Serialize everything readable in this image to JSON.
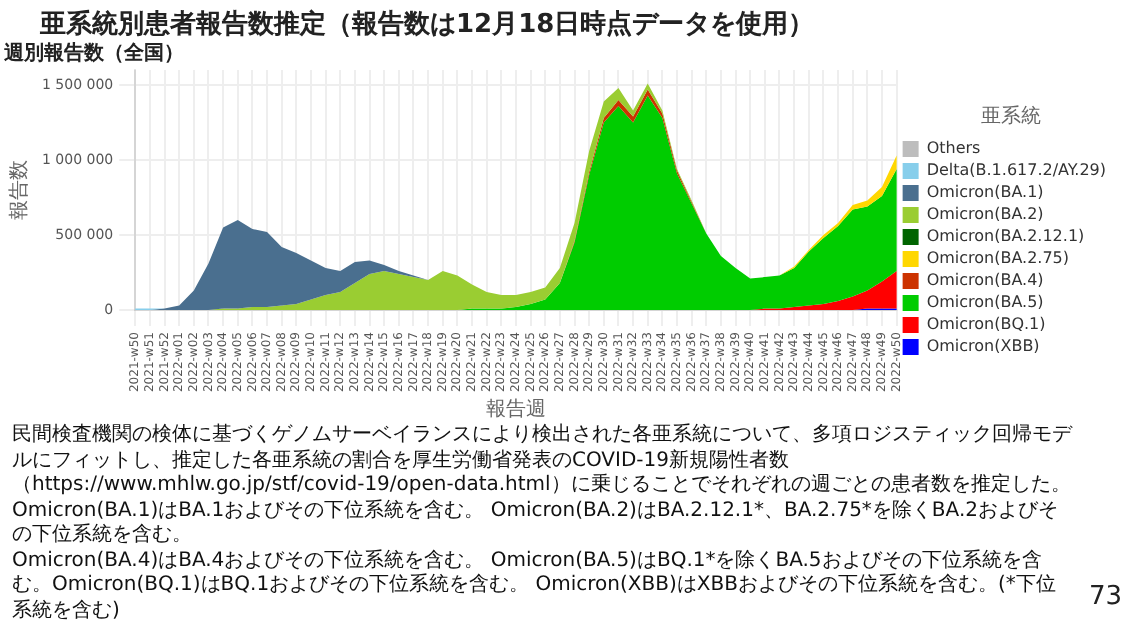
{
  "chart_data": {
    "type": "area",
    "stacked": true,
    "title": "亜系統別患者報告数推定（報告数は12月18日時点データを使用）",
    "subtitle": "週別報告数（全国）",
    "xlabel": "報告週",
    "ylabel": "報告数",
    "legend_title": "亜系統",
    "legend": "right",
    "grid": true,
    "categories": [
      "2021-w50",
      "2021-w51",
      "2021-w52",
      "2022-w01",
      "2022-w02",
      "2022-w03",
      "2022-w04",
      "2022-w05",
      "2022-w06",
      "2022-w07",
      "2022-w08",
      "2022-w09",
      "2022-w10",
      "2022-w11",
      "2022-w12",
      "2022-w13",
      "2022-w14",
      "2022-w15",
      "2022-w16",
      "2022-w17",
      "2022-w18",
      "2022-w19",
      "2022-w20",
      "2022-w21",
      "2022-w22",
      "2022-w23",
      "2022-w24",
      "2022-w25",
      "2022-w26",
      "2022-w27",
      "2022-w28",
      "2022-w29",
      "2022-w30",
      "2022-w31",
      "2022-w32",
      "2022-w33",
      "2022-w34",
      "2022-w35",
      "2022-w36",
      "2022-w37",
      "2022-w38",
      "2022-w39",
      "2022-w40",
      "2022-w41",
      "2022-w42",
      "2022-w43",
      "2022-w44",
      "2022-w45",
      "2022-w46",
      "2022-w47",
      "2022-w48",
      "2022-w49",
      "2022-w50"
    ],
    "ylim": [
      0,
      1600000
    ],
    "yticks": [
      0,
      {
        "value": 500000,
        "label": "500 000"
      },
      {
        "value": 1000000,
        "label": "1 000 000"
      },
      {
        "value": 1500000,
        "label": "1 500 000"
      }
    ],
    "series": [
      {
        "name": "Omicron(XBB)",
        "color": "#0000ff",
        "values": [
          null,
          null,
          null,
          null,
          null,
          null,
          null,
          null,
          null,
          null,
          null,
          null,
          null,
          null,
          null,
          null,
          null,
          null,
          null,
          null,
          null,
          null,
          null,
          null,
          null,
          null,
          null,
          null,
          null,
          null,
          null,
          null,
          null,
          null,
          null,
          null,
          null,
          null,
          null,
          null,
          null,
          null,
          null,
          null,
          null,
          null,
          null,
          null,
          0,
          0,
          10000,
          10000,
          10000
        ]
      },
      {
        "name": "Omicron(BQ.1)",
        "color": "#ff0000",
        "values": [
          null,
          null,
          null,
          null,
          null,
          null,
          null,
          null,
          null,
          null,
          null,
          null,
          null,
          null,
          null,
          null,
          null,
          null,
          null,
          null,
          null,
          null,
          null,
          null,
          null,
          null,
          null,
          null,
          null,
          null,
          null,
          null,
          null,
          null,
          null,
          null,
          null,
          null,
          null,
          null,
          null,
          null,
          0,
          10000,
          10000,
          20000,
          30000,
          40000,
          60000,
          90000,
          120000,
          180000,
          250000
        ]
      },
      {
        "name": "Omicron(BA.5)",
        "color": "#00cc00",
        "values": [
          null,
          null,
          null,
          null,
          null,
          null,
          null,
          null,
          null,
          null,
          null,
          null,
          null,
          null,
          null,
          null,
          null,
          null,
          null,
          null,
          null,
          0,
          0,
          10000,
          10000,
          10000,
          20000,
          40000,
          70000,
          180000,
          450000,
          900000,
          1250000,
          1360000,
          1250000,
          1430000,
          1280000,
          910000,
          710000,
          510000,
          360000,
          280000,
          210000,
          210000,
          220000,
          260000,
          360000,
          440000,
          500000,
          580000,
          560000,
          570000,
          680000
        ]
      },
      {
        "name": "Omicron(BA.4)",
        "color": "#cc3300",
        "values": [
          null,
          null,
          null,
          null,
          null,
          null,
          null,
          null,
          null,
          null,
          null,
          null,
          null,
          null,
          null,
          null,
          null,
          null,
          null,
          null,
          null,
          null,
          null,
          null,
          null,
          null,
          null,
          null,
          null,
          0,
          10000,
          20000,
          30000,
          40000,
          40000,
          40000,
          30000,
          20000,
          10000,
          0,
          null,
          null,
          null,
          null,
          null,
          null,
          null,
          null,
          null,
          null,
          null,
          null,
          null
        ]
      },
      {
        "name": "Omicron(BA.2.75)",
        "color": "#ffd700",
        "values": [
          null,
          null,
          null,
          null,
          null,
          null,
          null,
          null,
          null,
          null,
          null,
          null,
          null,
          null,
          null,
          null,
          null,
          null,
          null,
          null,
          null,
          null,
          null,
          null,
          null,
          null,
          null,
          null,
          null,
          null,
          null,
          null,
          null,
          null,
          null,
          null,
          null,
          null,
          null,
          null,
          null,
          null,
          null,
          null,
          0,
          10000,
          10000,
          20000,
          20000,
          30000,
          40000,
          60000,
          90000
        ]
      },
      {
        "name": "Omicron(BA.2.12.1)",
        "color": "#006400",
        "values": [
          null,
          null,
          null,
          null,
          null,
          null,
          null,
          null,
          null,
          null,
          null,
          null,
          null,
          null,
          null,
          null,
          null,
          null,
          null,
          null,
          null,
          null,
          null,
          null,
          null,
          null,
          null,
          null,
          null,
          null,
          null,
          null,
          null,
          null,
          null,
          null,
          null,
          null,
          null,
          null,
          null,
          null,
          null,
          null,
          null,
          null,
          null,
          null,
          null,
          null,
          null,
          null,
          null
        ]
      },
      {
        "name": "Omicron(BA.2)",
        "color": "#9acd32",
        "values": [
          null,
          null,
          null,
          null,
          null,
          0,
          10000,
          10000,
          20000,
          20000,
          30000,
          40000,
          70000,
          100000,
          120000,
          180000,
          240000,
          260000,
          240000,
          220000,
          200000,
          260000,
          230000,
          160000,
          110000,
          90000,
          80000,
          80000,
          80000,
          100000,
          120000,
          140000,
          110000,
          80000,
          40000,
          40000,
          20000,
          10000,
          10000,
          0,
          null,
          null,
          null,
          null,
          null,
          null,
          null,
          null,
          null,
          null,
          null,
          null,
          null
        ]
      },
      {
        "name": "Omicron(BA.1)",
        "color": "#4a6f8f",
        "values": [
          0,
          0,
          10000,
          30000,
          130000,
          310000,
          540000,
          590000,
          520000,
          500000,
          390000,
          340000,
          260000,
          180000,
          140000,
          140000,
          90000,
          40000,
          20000,
          10000,
          0,
          null,
          null,
          null,
          null,
          null,
          null,
          null,
          null,
          null,
          null,
          null,
          null,
          null,
          null,
          null,
          null,
          null,
          null,
          null,
          null,
          null,
          null,
          null,
          null,
          null,
          null,
          null,
          null,
          null,
          null,
          null,
          null
        ]
      },
      {
        "name": "Delta(B.1.617.2/AY.29)",
        "color": "#87ceeb",
        "values": [
          10000,
          10000,
          0,
          null,
          null,
          null,
          null,
          null,
          null,
          null,
          null,
          null,
          null,
          null,
          null,
          null,
          null,
          null,
          null,
          null,
          null,
          null,
          null,
          null,
          null,
          null,
          null,
          null,
          null,
          null,
          null,
          null,
          null,
          null,
          null,
          null,
          null,
          null,
          null,
          null,
          null,
          null,
          null,
          null,
          null,
          null,
          null,
          null,
          null,
          null,
          null,
          null,
          null
        ]
      },
      {
        "name": "Others",
        "color": "#bdbdbd",
        "values": [
          null,
          null,
          null,
          null,
          null,
          null,
          null,
          null,
          null,
          null,
          null,
          null,
          null,
          null,
          null,
          null,
          null,
          null,
          null,
          null,
          null,
          null,
          null,
          null,
          null,
          null,
          null,
          null,
          null,
          null,
          null,
          null,
          null,
          null,
          null,
          null,
          null,
          null,
          null,
          null,
          null,
          null,
          null,
          null,
          null,
          null,
          null,
          null,
          null,
          null,
          null,
          null,
          null
        ]
      }
    ],
    "annotations": [
      "民間検査機関の検体に基づくゲノムサーベイランスにより検出された各亜系統について、多項ロジスティック回帰モデルにフィットし、推定した各亜系統の割合を厚生労働省発表のCOVID-19新規陽性者数（https://www.mhlw.go.jp/stf/covid-19/open-data.html）に乗じることでそれぞれの週ごとの患者数を推定した。",
      "Omicron(BA.1)はBA.1およびその下位系統を含む。 Omicron(BA.2)はBA.2.12.1*、BA.2.75*を除くBA.2およびその下位系統を含む。",
      "Omicron(BA.4)はBA.4およびその下位系統を含む。 Omicron(BA.5)はBQ.1*を除くBA.5およびその下位系統を含む。Omicron(BQ.1)はBQ.1およびその下位系統を含む。 Omicron(XBB)はXBBおよびその下位系統を含む。(*下位系統を含む)",
      "73"
    ]
  }
}
